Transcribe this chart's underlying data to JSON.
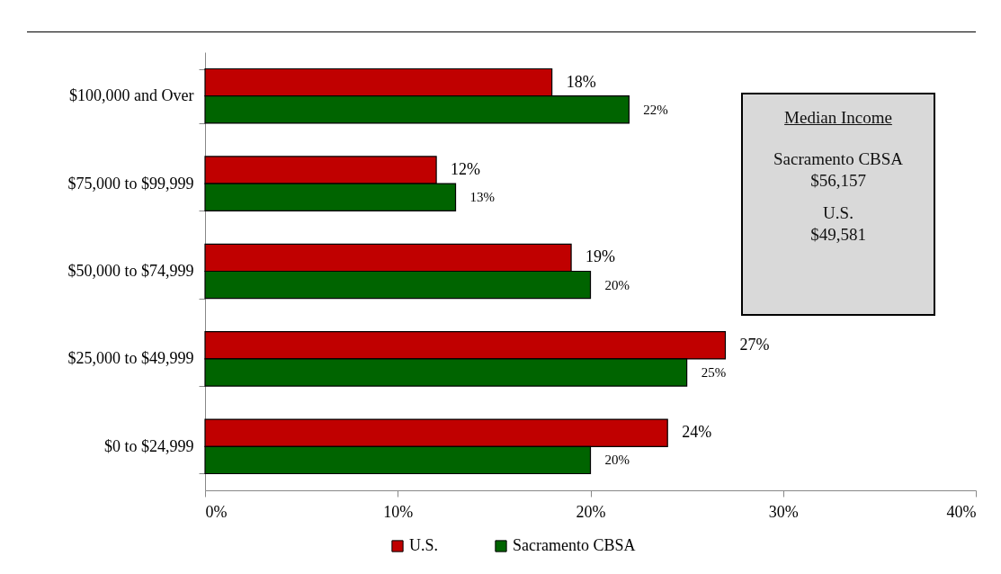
{
  "chart_data": {
    "type": "bar",
    "orientation": "horizontal",
    "categories": [
      "$100,000 and Over",
      "$75,000 to $99,999",
      "$50,000 to $74,999",
      "$25,000 to $49,999",
      "$0 to $24,999"
    ],
    "series": [
      {
        "name": "U.S.",
        "color": "#c00000",
        "values": [
          18,
          12,
          19,
          27,
          24
        ],
        "value_labels": [
          "18%",
          "12%",
          "19%",
          "27%",
          "24%"
        ]
      },
      {
        "name": "Sacramento CBSA",
        "color": "#006400",
        "values": [
          22,
          13,
          20,
          25,
          20
        ],
        "value_labels": [
          "22%",
          "13%",
          "20%",
          "25%",
          "20%"
        ]
      }
    ],
    "xlim": [
      0,
      40
    ],
    "xticks": [
      {
        "value": 0,
        "label": "0%"
      },
      {
        "value": 10,
        "label": "10%"
      },
      {
        "value": 20,
        "label": "20%"
      },
      {
        "value": 30,
        "label": "30%"
      },
      {
        "value": 40,
        "label": "40%"
      }
    ],
    "grid": false,
    "legend": "bottom",
    "annotations": [
      "Median Income",
      "Sacramento CBSA",
      "$56,157",
      "U.S.",
      "$49,581"
    ]
  }
}
